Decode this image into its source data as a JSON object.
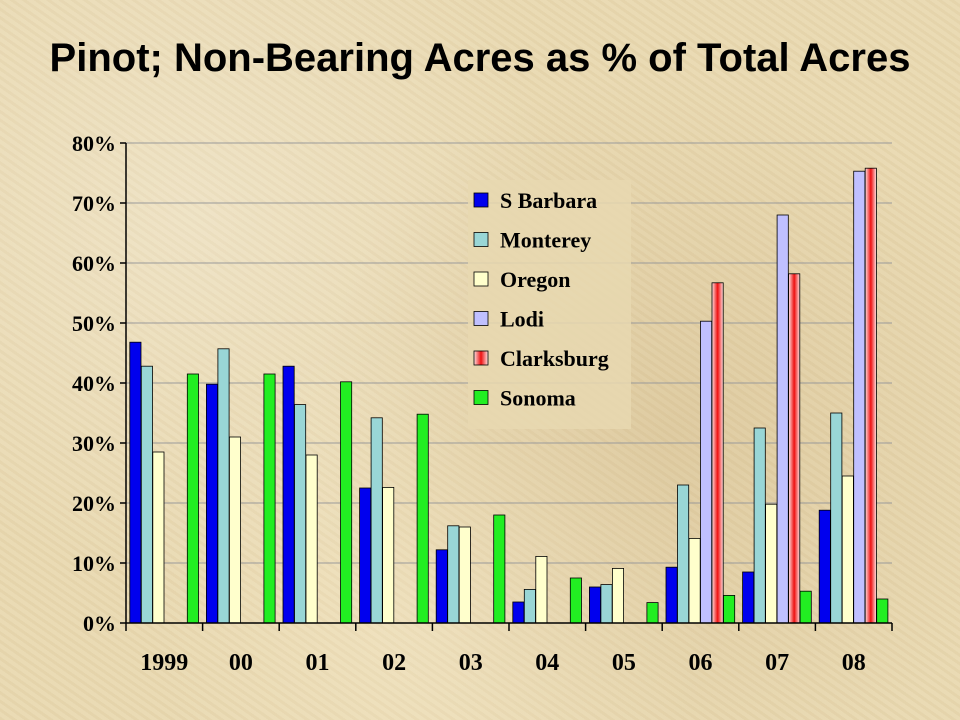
{
  "chart_data": {
    "type": "bar",
    "title": "Pinot; Non-Bearing Acres as % of Total Acres",
    "xlabel": "",
    "ylabel": "",
    "ylim": [
      0,
      80
    ],
    "yticks": [
      "0%",
      "10%",
      "20%",
      "30%",
      "40%",
      "50%",
      "60%",
      "70%",
      "80%"
    ],
    "grid": true,
    "legend_position": "top-right inside",
    "categories": [
      "1999",
      "00",
      "01",
      "02",
      "03",
      "04",
      "05",
      "06",
      "07",
      "08"
    ],
    "series": [
      {
        "name": "S Barbara",
        "color": "#0000ee",
        "values": [
          46.8,
          39.8,
          42.8,
          22.5,
          12.2,
          3.5,
          6.0,
          9.3,
          8.5,
          18.8
        ]
      },
      {
        "name": "Monterey",
        "color": "#99d6d6",
        "values": [
          42.8,
          45.7,
          36.4,
          34.2,
          16.2,
          5.6,
          6.4,
          23.0,
          32.5,
          35.0
        ]
      },
      {
        "name": "Oregon",
        "color": "#ffffcc",
        "values": [
          28.5,
          31.0,
          28.0,
          22.6,
          16.0,
          11.1,
          9.1,
          14.1,
          19.8,
          24.5
        ]
      },
      {
        "name": "Lodi",
        "color": "#c0c0ff",
        "values": [
          null,
          null,
          null,
          null,
          null,
          null,
          null,
          50.3,
          68.0,
          75.3
        ]
      },
      {
        "name": "Clarksburg",
        "color": "#ee2222",
        "values": [
          null,
          null,
          null,
          null,
          null,
          null,
          null,
          56.7,
          58.2,
          75.8
        ]
      },
      {
        "name": "Sonoma",
        "color": "#22ee22",
        "values": [
          41.5,
          41.5,
          40.2,
          34.8,
          18.0,
          7.5,
          3.4,
          4.6,
          5.3,
          4.0
        ]
      }
    ]
  }
}
